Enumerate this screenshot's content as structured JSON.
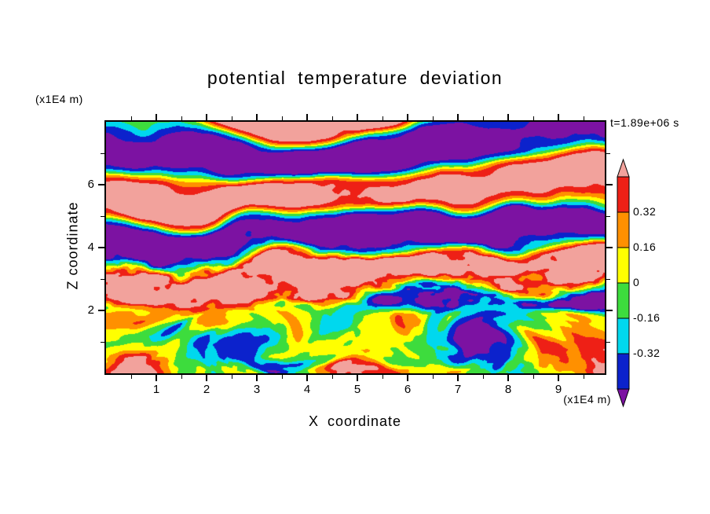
{
  "title": "potential temperature deviation",
  "time_label": "t=1.89e+06 s",
  "axes": {
    "x_label": "X coordinate",
    "x_unit": "(x1E4 m)",
    "y_label": "Z coordinate",
    "y_unit": "(x1E4 m)",
    "x_ticks": [
      1,
      2,
      3,
      4,
      5,
      6,
      7,
      8,
      9
    ],
    "y_ticks": [
      2,
      4,
      6
    ],
    "x_range": [
      0,
      9.92
    ],
    "y_range": [
      0,
      8.0
    ]
  },
  "colorbar": {
    "labels": [
      "0.32",
      "0.16",
      "0",
      "-0.16",
      "-0.32"
    ],
    "levels": [
      0.48,
      0.32,
      0.16,
      0,
      -0.16,
      -0.32,
      -0.48
    ],
    "band_colors_top_to_bottom": [
      "#ee2016",
      "#ff9000",
      "#ffff00",
      "#3ddc3d",
      "#00d8ee",
      "#0c22cc"
    ],
    "arrow_top_color": "#f2a29c",
    "arrow_bottom_color": "#7c12a2"
  },
  "chart_data": {
    "type": "heatmap",
    "title": "potential temperature deviation",
    "xlabel": "X coordinate (x1E4 m)",
    "ylabel": "Z coordinate (x1E4 m)",
    "time_annotation": "t=1.89e+06 s",
    "x_range": [
      0,
      9.92
    ],
    "z_range": [
      0,
      8.0
    ],
    "x_tick_values": [
      1,
      2,
      3,
      4,
      5,
      6,
      7,
      8,
      9
    ],
    "z_tick_values": [
      2,
      4,
      6
    ],
    "colorbar_tick_labels": [
      "0.32",
      "0.16",
      "0",
      "-0.16",
      "-0.32"
    ],
    "value_levels": [
      0.48,
      0.32,
      0.16,
      0,
      -0.16,
      -0.32,
      -0.48
    ],
    "level_colors_high_to_low": [
      "#f2a29c",
      "#ee2016",
      "#ff9000",
      "#ffff00",
      "#3ddc3d",
      "#00d8ee",
      "#0c22cc",
      "#7c12a2"
    ],
    "field": {
      "description": "Stratified wavy layers of saturated positive (pink, >0.48) and negative (purple, <-0.48) deviation above z=2 with thin red/orange/yellow/green/cyan filaments at layer interfaces; convective mixed layer below z=2 dominated by green/yellow with cyan swirls and two vortices with cold navy cores; warm (yellow/orange/red) anomalies near the lower corners and at convective plume tops.",
      "convective_layer_top": 2.1,
      "upper_layer_wavenumber": 2.35,
      "upper_layer_phase": 1.1,
      "vortices": [
        {
          "x": 3.0,
          "z": 1.05,
          "core_value": -0.55,
          "core_radius": 0.5,
          "swirl": 2.6,
          "swirl_radius": 1.25
        },
        {
          "x": 7.3,
          "z": 1.0,
          "core_value": -0.6,
          "core_radius": 0.55,
          "swirl": -2.4,
          "swirl_radius": 1.35
        }
      ],
      "warm_anomalies": [
        {
          "x": 0.35,
          "z": 0.2,
          "value": 0.55,
          "radius": 0.75
        },
        {
          "x": 9.55,
          "z": 0.3,
          "value": 0.5,
          "radius": 0.85
        },
        {
          "x": 4.75,
          "z": 0.35,
          "value": 0.35,
          "radius": 0.8
        },
        {
          "x": 2.0,
          "z": 1.75,
          "value": 0.42,
          "radius": 0.45
        },
        {
          "x": 5.9,
          "z": 1.7,
          "value": 0.38,
          "radius": 0.5
        }
      ]
    }
  }
}
